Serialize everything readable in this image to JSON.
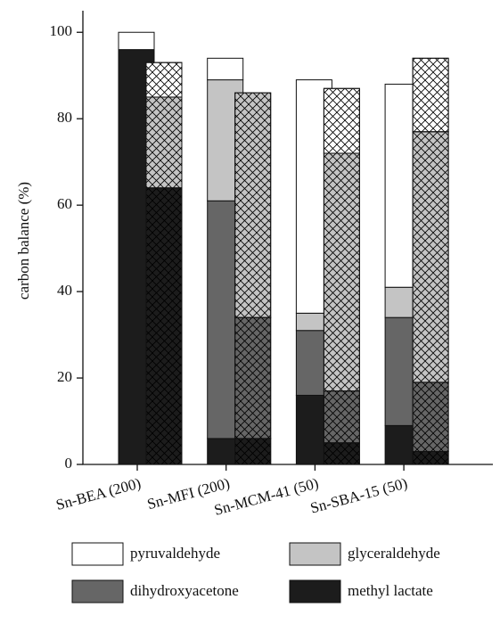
{
  "chart_data": {
    "type": "bar",
    "stacked": true,
    "y_label": "carbon balance (%)",
    "categories": [
      "Sn-BEA (200)",
      "Sn-MFI (200)",
      "Sn-MCM-41 (50)",
      "Sn-SBA-15 (50)"
    ],
    "series": [
      {
        "name": "methyl lactate",
        "color": "#1c1c1c",
        "values": [
          96,
          6,
          16,
          9
        ],
        "hatched_values": [
          64,
          6,
          5,
          3
        ]
      },
      {
        "name": "dihydroxyacetone",
        "color": "#666666",
        "values": [
          0,
          55,
          15,
          25
        ],
        "hatched_values": [
          0,
          28,
          12,
          16
        ]
      },
      {
        "name": "glyceraldehyde",
        "color": "#c4c4c4",
        "values": [
          0,
          28,
          4,
          7
        ],
        "hatched_values": [
          21,
          52,
          55,
          58
        ]
      },
      {
        "name": "pyruvaldehyde",
        "color": "#ffffff",
        "values": [
          4,
          5,
          54,
          47
        ],
        "hatched_values": [
          8,
          0,
          15,
          17
        ]
      }
    ],
    "ylim": [
      0,
      105
    ],
    "yticks": [
      0,
      20,
      40,
      60,
      80,
      100
    ]
  }
}
